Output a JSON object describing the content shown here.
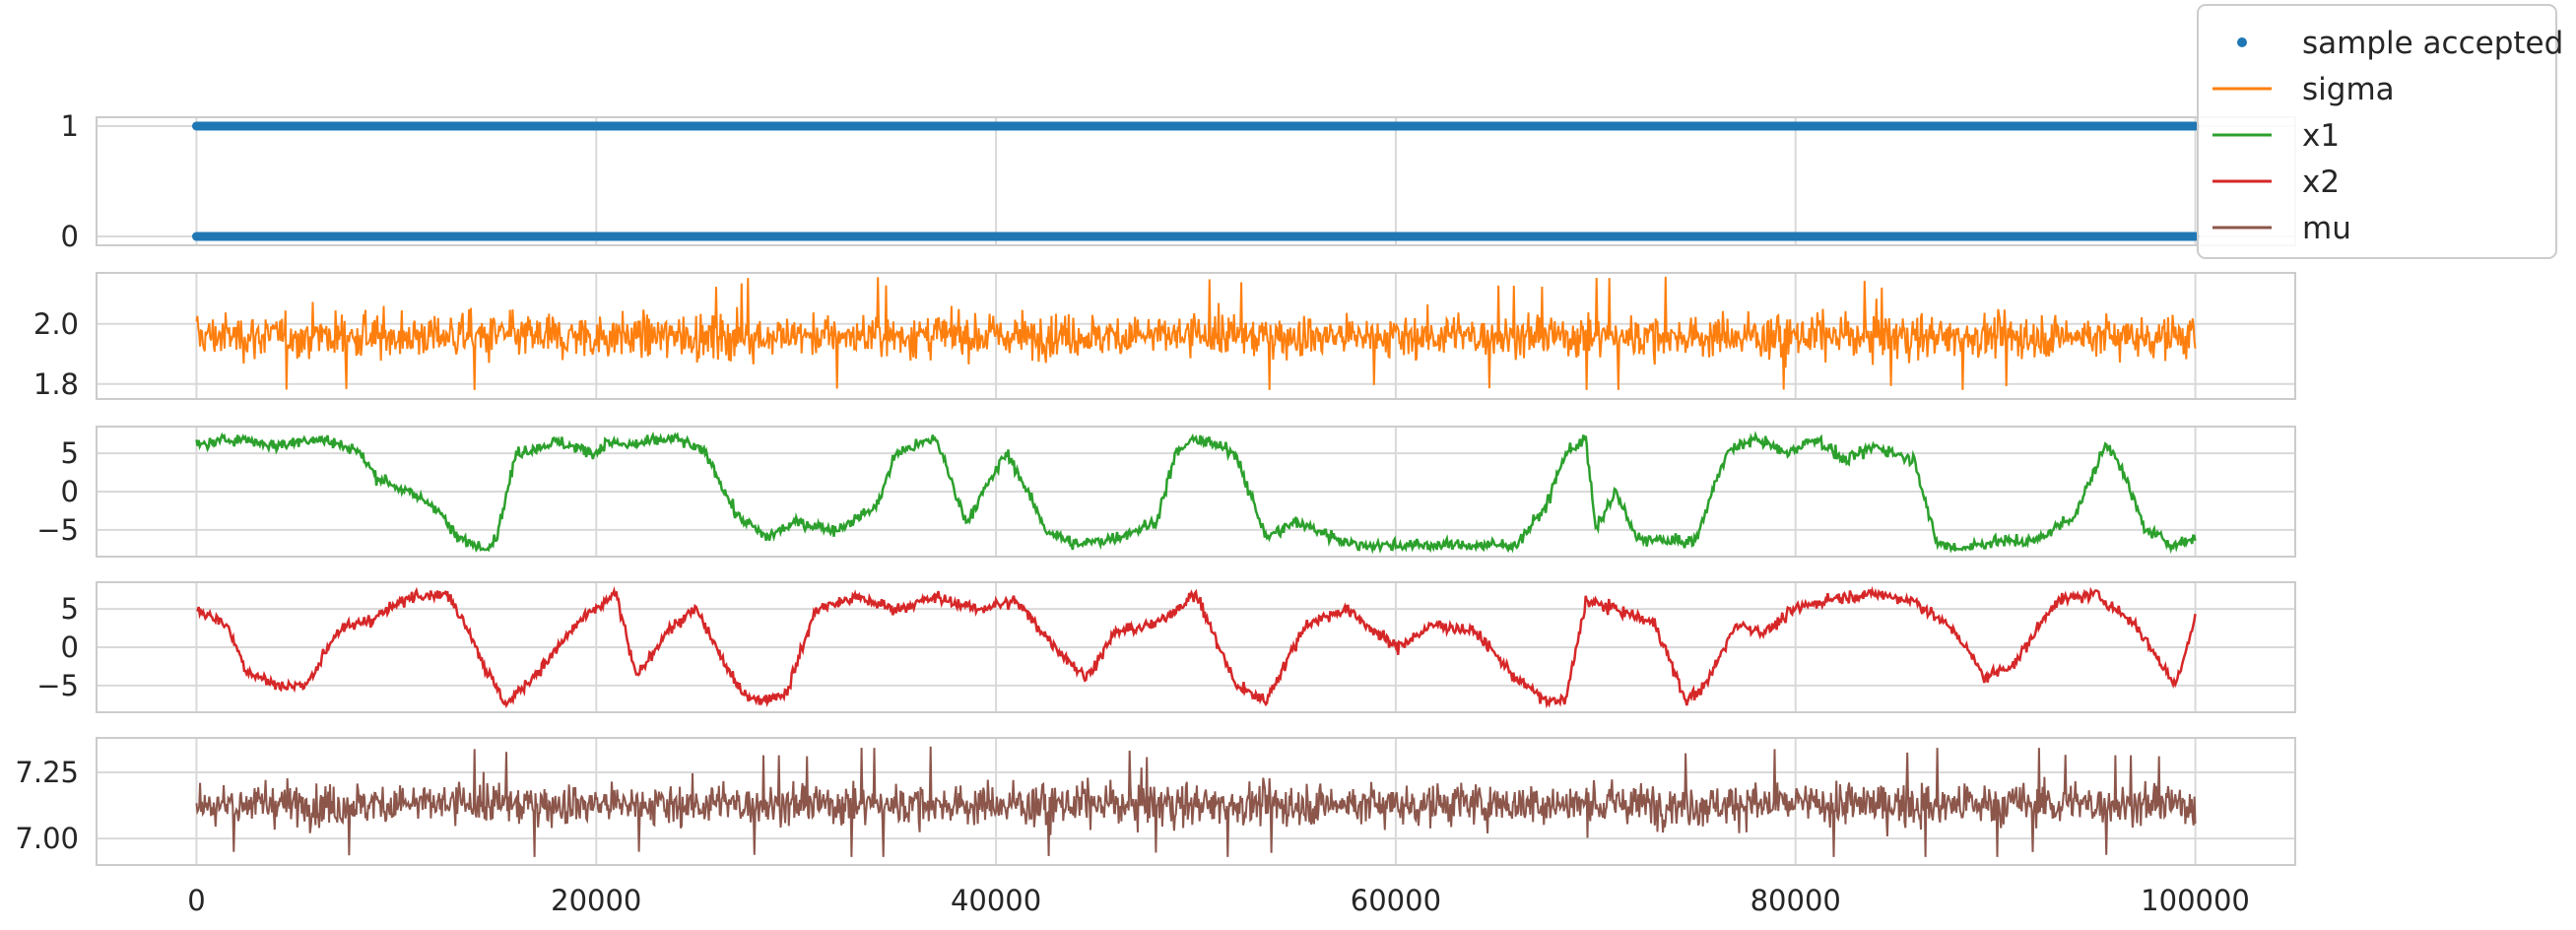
{
  "chart_data": {
    "type": "line",
    "x_ticks": [
      "0",
      "20000",
      "40000",
      "60000",
      "80000",
      "100000"
    ],
    "xlim": [
      -5000,
      105000
    ],
    "legend": {
      "position": "top-right",
      "entries": [
        {
          "label": "sample accepted",
          "color": "#1f77b4",
          "marker": "point"
        },
        {
          "label": "sigma",
          "color": "#ff7f0e",
          "marker": "line"
        },
        {
          "label": "x1",
          "color": "#2ca02c",
          "marker": "line"
        },
        {
          "label": "x2",
          "color": "#d62728",
          "marker": "line"
        },
        {
          "label": "mu",
          "color": "#8c564b",
          "marker": "line"
        }
      ]
    },
    "panels": [
      {
        "series": "sample accepted",
        "color": "#1f77b4",
        "kind": "scatter",
        "ylim": [
          -0.08,
          1.08
        ],
        "y_ticks": [
          "0",
          "1"
        ],
        "y_tick_values": [
          0,
          1
        ],
        "x": [
          0,
          100000
        ],
        "values": [
          0,
          1
        ]
      },
      {
        "series": "sigma",
        "color": "#ff7f0e",
        "kind": "noise",
        "ylim": [
          1.75,
          2.17
        ],
        "y_ticks": [
          "1.8",
          "2.0"
        ],
        "y_tick_values": [
          1.8,
          2.0
        ],
        "mean": 1.96,
        "typical_min": 1.83,
        "typical_max": 2.1,
        "observed_min": 1.78,
        "observed_max": 2.16
      },
      {
        "series": "x1",
        "color": "#2ca02c",
        "kind": "trace",
        "ylim": [
          -8.5,
          8.5
        ],
        "y_ticks": [
          "5",
          "0",
          "−5"
        ],
        "y_tick_values": [
          5,
          0,
          -5
        ],
        "x": [
          0,
          2000,
          4000,
          6000,
          8000,
          9000,
          10500,
          12000,
          13000,
          14500,
          15000,
          16000,
          18000,
          20000,
          20500,
          21500,
          24000,
          25500,
          27000,
          28500,
          30000,
          32000,
          34000,
          35000,
          37000,
          38500,
          40500,
          41000,
          42500,
          44000,
          46000,
          48000,
          49000,
          50000,
          52000,
          53500,
          55000,
          58000,
          61000,
          64000,
          66000,
          67500,
          68500,
          69500,
          70000,
          71000,
          72000,
          73500,
          75000,
          76500,
          78000,
          79500,
          81000,
          82500,
          84000,
          86000,
          87000,
          88000,
          90000,
          92000,
          94000,
          95500,
          96000,
          97500,
          99000,
          100000
        ],
        "values": [
          6.0,
          7.0,
          6.0,
          7.0,
          5.5,
          2.0,
          0.0,
          -2.0,
          -6.0,
          -7.5,
          -6.0,
          5.0,
          6.5,
          5.0,
          6.5,
          6.0,
          7.0,
          5.0,
          -3.0,
          -6.0,
          -4.0,
          -5.0,
          -2.0,
          5.0,
          7.0,
          -4.0,
          5.0,
          3.0,
          -5.0,
          -7.0,
          -6.0,
          -4.0,
          5.0,
          7.0,
          5.0,
          -6.0,
          -4.0,
          -7.0,
          -7.0,
          -7.0,
          -7.0,
          -2.0,
          5.0,
          7.0,
          -5.0,
          0.0,
          -6.0,
          -6.5,
          -6.5,
          5.0,
          7.0,
          5.0,
          7.0,
          4.0,
          6.0,
          4.0,
          -6.5,
          -7.5,
          -6.5,
          -6.5,
          -3.0,
          6.0,
          5.0,
          -5.0,
          -7.0,
          -6.0
        ]
      },
      {
        "series": "x2",
        "color": "#d62728",
        "kind": "trace",
        "ylim": [
          -8.5,
          8.5
        ],
        "y_ticks": [
          "5",
          "0",
          "−5"
        ],
        "y_tick_values": [
          5,
          0,
          -5
        ],
        "x": [
          0,
          1500,
          2500,
          4000,
          5500,
          7000,
          9000,
          11000,
          12500,
          13500,
          14500,
          15500,
          17500,
          19000,
          20000,
          21000,
          22000,
          23500,
          25000,
          27000,
          28000,
          29500,
          31000,
          33000,
          35000,
          37000,
          39000,
          41000,
          43000,
          44500,
          46000,
          48000,
          50000,
          52000,
          53500,
          55500,
          57500,
          60000,
          62000,
          64000,
          66000,
          67500,
          68500,
          69500,
          71000,
          73000,
          74500,
          75500,
          77000,
          78500,
          80000,
          82000,
          84000,
          86000,
          88000,
          89500,
          91000,
          93000,
          95000,
          97000,
          99000,
          100000
        ],
        "values": [
          5.0,
          3.0,
          -3.0,
          -5.0,
          -5.0,
          2.0,
          4.0,
          7.0,
          7.0,
          3.0,
          -3.0,
          -7.5,
          -2.0,
          3.0,
          5.0,
          7.0,
          -4.0,
          2.0,
          5.0,
          -5.0,
          -7.0,
          -6.0,
          5.0,
          6.5,
          5.0,
          6.5,
          5.0,
          6.0,
          0.0,
          -4.0,
          2.0,
          3.0,
          7.0,
          -5.0,
          -7.0,
          3.0,
          5.0,
          0.0,
          3.0,
          2.0,
          -4.0,
          -7.0,
          -7.0,
          6.0,
          5.0,
          3.0,
          -7.0,
          -5.0,
          3.0,
          2.0,
          5.0,
          6.5,
          7.0,
          6.0,
          2.0,
          -4.0,
          -2.0,
          6.0,
          7.0,
          3.0,
          -5.0,
          4.0
        ]
      },
      {
        "series": "mu",
        "color": "#8c564b",
        "kind": "noise",
        "ylim": [
          6.9,
          7.38
        ],
        "y_ticks": [
          "7.00",
          "7.25"
        ],
        "y_tick_values": [
          7.0,
          7.25
        ],
        "mean": 7.13,
        "typical_min": 6.98,
        "typical_max": 7.28,
        "observed_min": 6.93,
        "observed_max": 7.35
      }
    ]
  }
}
